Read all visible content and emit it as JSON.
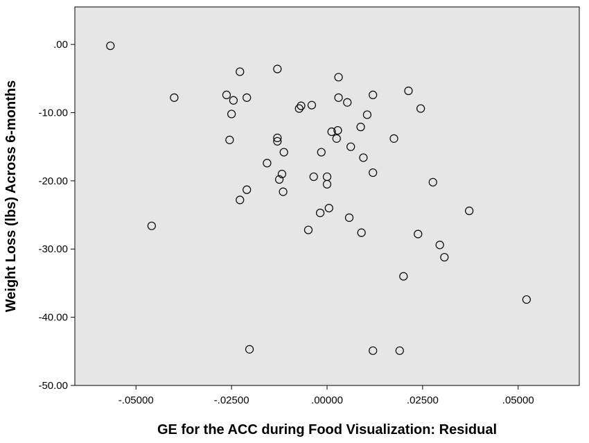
{
  "chart_data": {
    "type": "scatter",
    "title": "",
    "xlabel": "GE for the ACC during Food Visualization: Residual",
    "ylabel": "Weight Loss (lbs) Across 6-months",
    "xlim": [
      -0.066,
      0.066
    ],
    "ylim": [
      -50,
      5.5
    ],
    "xticks": [
      -0.05,
      -0.025,
      0.0,
      0.025,
      0.05
    ],
    "xtick_labels": [
      "-.05000",
      "-.02500",
      ".00000",
      ".02500",
      ".05000"
    ],
    "yticks": [
      0,
      -10,
      -20,
      -30,
      -40,
      -50
    ],
    "ytick_labels": [
      ".00",
      "-10.00",
      "-20.00",
      "-30.00",
      "-40.00",
      "-50.00"
    ],
    "grid": false,
    "background": "#e6e6e6",
    "marker": "open-circle",
    "points": [
      {
        "x": -0.0567,
        "y": -0.2
      },
      {
        "x": -0.0459,
        "y": -26.6
      },
      {
        "x": -0.04,
        "y": -7.8
      },
      {
        "x": -0.0263,
        "y": -7.4
      },
      {
        "x": -0.0255,
        "y": -14.0
      },
      {
        "x": -0.025,
        "y": -10.2
      },
      {
        "x": -0.0245,
        "y": -8.2
      },
      {
        "x": -0.0228,
        "y": -4.0
      },
      {
        "x": -0.0228,
        "y": -22.8
      },
      {
        "x": -0.021,
        "y": -7.8
      },
      {
        "x": -0.021,
        "y": -21.3
      },
      {
        "x": -0.0203,
        "y": -44.7
      },
      {
        "x": -0.0157,
        "y": -17.4
      },
      {
        "x": -0.013,
        "y": -3.6
      },
      {
        "x": -0.013,
        "y": -13.7
      },
      {
        "x": -0.013,
        "y": -14.2
      },
      {
        "x": -0.0125,
        "y": -19.8
      },
      {
        "x": -0.0118,
        "y": -19.0
      },
      {
        "x": -0.0115,
        "y": -21.6
      },
      {
        "x": -0.0113,
        "y": -15.8
      },
      {
        "x": -0.0073,
        "y": -9.4
      },
      {
        "x": -0.0068,
        "y": -9.0
      },
      {
        "x": -0.0049,
        "y": -27.2
      },
      {
        "x": -0.004,
        "y": -8.9
      },
      {
        "x": -0.0035,
        "y": -19.4
      },
      {
        "x": -0.0018,
        "y": -24.7
      },
      {
        "x": -0.0015,
        "y": -15.8
      },
      {
        "x": 0.0,
        "y": -19.4
      },
      {
        "x": 0.0,
        "y": -20.5
      },
      {
        "x": 0.0005,
        "y": -24.0
      },
      {
        "x": 0.0012,
        "y": -12.8
      },
      {
        "x": 0.0025,
        "y": -13.8
      },
      {
        "x": 0.0028,
        "y": -12.6
      },
      {
        "x": 0.003,
        "y": -4.8
      },
      {
        "x": 0.003,
        "y": -7.8
      },
      {
        "x": 0.0053,
        "y": -8.5
      },
      {
        "x": 0.0058,
        "y": -25.4
      },
      {
        "x": 0.0062,
        "y": -15.0
      },
      {
        "x": 0.0088,
        "y": -12.1
      },
      {
        "x": 0.009,
        "y": -27.6
      },
      {
        "x": 0.0095,
        "y": -16.6
      },
      {
        "x": 0.0105,
        "y": -10.3
      },
      {
        "x": 0.012,
        "y": -7.4
      },
      {
        "x": 0.012,
        "y": -18.8
      },
      {
        "x": 0.012,
        "y": -44.9
      },
      {
        "x": 0.0175,
        "y": -13.8
      },
      {
        "x": 0.019,
        "y": -44.9
      },
      {
        "x": 0.02,
        "y": -34.0
      },
      {
        "x": 0.0213,
        "y": -6.8
      },
      {
        "x": 0.0238,
        "y": -27.8
      },
      {
        "x": 0.0245,
        "y": -9.4
      },
      {
        "x": 0.0277,
        "y": -20.2
      },
      {
        "x": 0.0295,
        "y": -29.4
      },
      {
        "x": 0.0307,
        "y": -31.2
      },
      {
        "x": 0.0372,
        "y": -24.4
      },
      {
        "x": 0.0522,
        "y": -37.4
      }
    ]
  }
}
